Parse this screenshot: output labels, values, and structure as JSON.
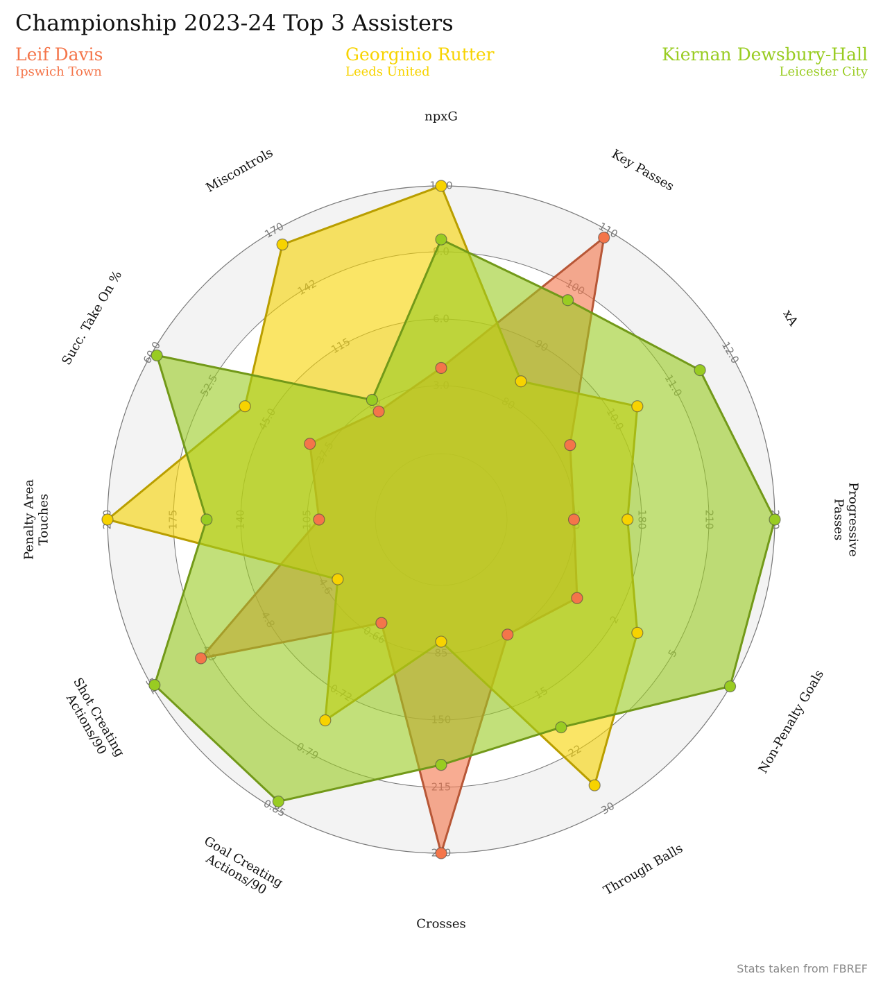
{
  "title": "Championship 2023-24 Top 3 Assisters",
  "source": "Stats taken from FBREF",
  "players": [
    {
      "name": "Leif Davis",
      "team": "Ipswich Town",
      "color": "#f4754a"
    },
    {
      "name": "Georginio Rutter",
      "team": "Leeds United",
      "color": "#f7d300"
    },
    {
      "name": "Kiernan Dewsbury-Hall",
      "team": "Leicester City",
      "color": "#99cc22"
    }
  ],
  "chart_data": {
    "type": "radar",
    "title": "Championship 2023-24 Top 3 Assisters",
    "axes": [
      {
        "name": "npxG",
        "ticks": [
          "3.0",
          "6.0",
          "9.0",
          "12.0"
        ]
      },
      {
        "name": "Key Passes",
        "ticks": [
          "80",
          "90",
          "100",
          "110"
        ]
      },
      {
        "name": "xA",
        "ticks": [
          "10.0",
          "11.0",
          "12.0"
        ]
      },
      {
        "name": "Progressive Passes",
        "ticks": [
          "150",
          "180",
          "210",
          "240"
        ]
      },
      {
        "name": "Non-Penalty Goals",
        "ticks": [
          "2",
          "5",
          "8"
        ]
      },
      {
        "name": "Through Balls",
        "ticks": [
          "8",
          "15",
          "22",
          "30"
        ]
      },
      {
        "name": "Crosses",
        "ticks": [
          "85",
          "150",
          "215",
          "280"
        ]
      },
      {
        "name": "Goal Creating Actions/90",
        "ticks": [
          "0.66",
          "0.72",
          "0.79",
          "0.85"
        ]
      },
      {
        "name": "Shot Creating Actions/90",
        "ticks": [
          "4.6",
          "4.8",
          "4.9",
          "5.1"
        ]
      },
      {
        "name": "Penalty Area Touches",
        "ticks": [
          "105",
          "140",
          "175",
          "200"
        ]
      },
      {
        "name": "Succ. Take On %",
        "ticks": [
          "37.5",
          "45.0",
          "52.5",
          "60.0"
        ]
      },
      {
        "name": "Miscontrols",
        "ticks": [
          "88",
          "115",
          "142",
          "170"
        ]
      }
    ],
    "series": [
      {
        "name": "Leif Davis",
        "values": [
          0.32,
          0.97,
          0.31,
          0.25,
          0.34,
          0.25,
          1.0,
          0.2,
          0.79,
          0.21,
          0.32,
          0.22
        ]
      },
      {
        "name": "Georginio Rutter",
        "values": [
          1.0,
          0.35,
          0.6,
          0.45,
          0.6,
          0.9,
          0.21,
          0.62,
          0.2,
          1.0,
          0.6,
          0.94
        ]
      },
      {
        "name": "Kiernan Dewsbury-Hall",
        "values": [
          0.8,
          0.7,
          0.87,
          1.0,
          1.0,
          0.65,
          0.67,
          0.97,
          0.99,
          0.63,
          0.98,
          0.27
        ]
      }
    ]
  }
}
